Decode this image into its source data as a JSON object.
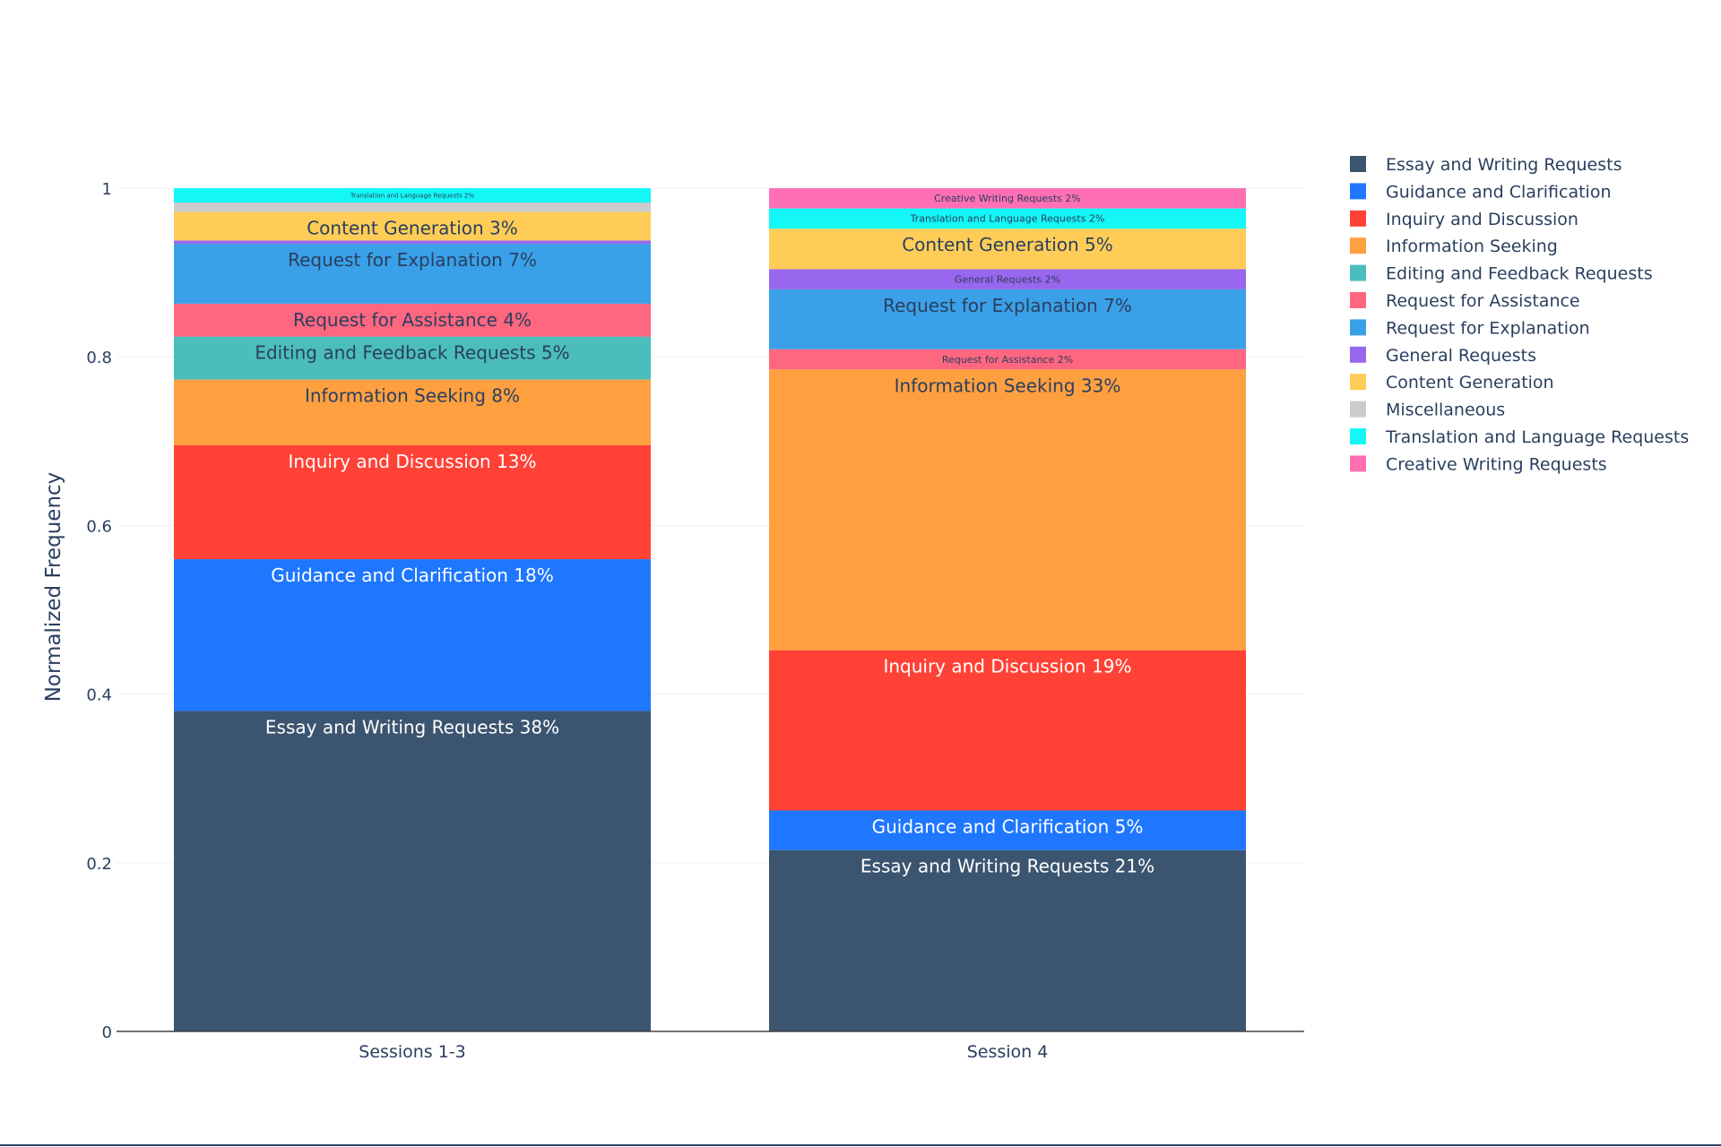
{
  "chart_data": {
    "type": "bar",
    "stacked": true,
    "categories": [
      "Sessions 1-3",
      "Session 4"
    ],
    "ylabel": "Normalized Frequency",
    "xlabel": "",
    "ylim": [
      0,
      1
    ],
    "yticks": [
      0,
      0.2,
      0.4,
      0.6,
      0.8,
      1
    ],
    "ytick_labels": [
      "0",
      "0.2",
      "0.4",
      "0.6",
      "0.8",
      "1"
    ],
    "grid": true,
    "legend_position": "top-right",
    "series": [
      {
        "name": "Essay and Writing Requests",
        "color": "#3b5470",
        "values": [
          0.38,
          0.215
        ],
        "labels": [
          "Essay and Writing Requests 38%",
          "Essay and Writing Requests 21%"
        ]
      },
      {
        "name": "Guidance and Clarification",
        "color": "#1f77ff",
        "values": [
          0.18,
          0.047
        ],
        "labels": [
          "Guidance and Clarification 18%",
          "Guidance and Clarification 5%"
        ]
      },
      {
        "name": "Inquiry and Discussion",
        "color": "#ff4136",
        "values": [
          0.135,
          0.19
        ],
        "labels": [
          "Inquiry and Discussion 13%",
          "Inquiry and Discussion 19%"
        ]
      },
      {
        "name": "Information Seeking",
        "color": "#ffa040",
        "values": [
          0.078,
          0.333
        ],
        "labels": [
          "Information Seeking 8%",
          "Information Seeking 33%"
        ]
      },
      {
        "name": "Editing and Feedback Requests",
        "color": "#4bbdbd",
        "values": [
          0.051,
          0
        ],
        "labels": [
          "Editing and Feedback Requests 5%",
          ""
        ]
      },
      {
        "name": "Request for Assistance",
        "color": "#ff6680",
        "values": [
          0.039,
          0.024
        ],
        "labels": [
          "Request for Assistance 4%",
          "Request for Assistance 2%"
        ]
      },
      {
        "name": "Request for Explanation",
        "color": "#3aa0e8",
        "values": [
          0.071,
          0.071
        ],
        "labels": [
          "Request for Explanation 7%",
          "Request for Explanation 7%"
        ]
      },
      {
        "name": "General Requests",
        "color": "#9966ee",
        "values": [
          0.004,
          0.024
        ],
        "labels": [
          "",
          "General Requests 2%"
        ]
      },
      {
        "name": "Content Generation",
        "color": "#ffcd57",
        "values": [
          0.034,
          0.048
        ],
        "labels": [
          "Content Generation 3%",
          "Content Generation 5%"
        ]
      },
      {
        "name": "Miscellaneous",
        "color": "#c9cbcf",
        "values": [
          0.011,
          0
        ],
        "labels": [
          "",
          ""
        ]
      },
      {
        "name": "Translation and Language Requests",
        "color": "#13f7f7",
        "values": [
          0.017,
          0.024
        ],
        "labels": [
          "Translation and Language Requests 2%",
          "Translation and Language Requests 2%"
        ]
      },
      {
        "name": "Creative Writing Requests",
        "color": "#ff6fb4",
        "values": [
          0,
          0.024
        ],
        "labels": [
          "",
          "Creative Writing Requests 2%"
        ]
      }
    ],
    "colors": {
      "axis_text": "#2a3f5f",
      "label_light": "#ffffff",
      "label_dark": "#2a3f5f",
      "grid": "#ebf0f8"
    }
  }
}
